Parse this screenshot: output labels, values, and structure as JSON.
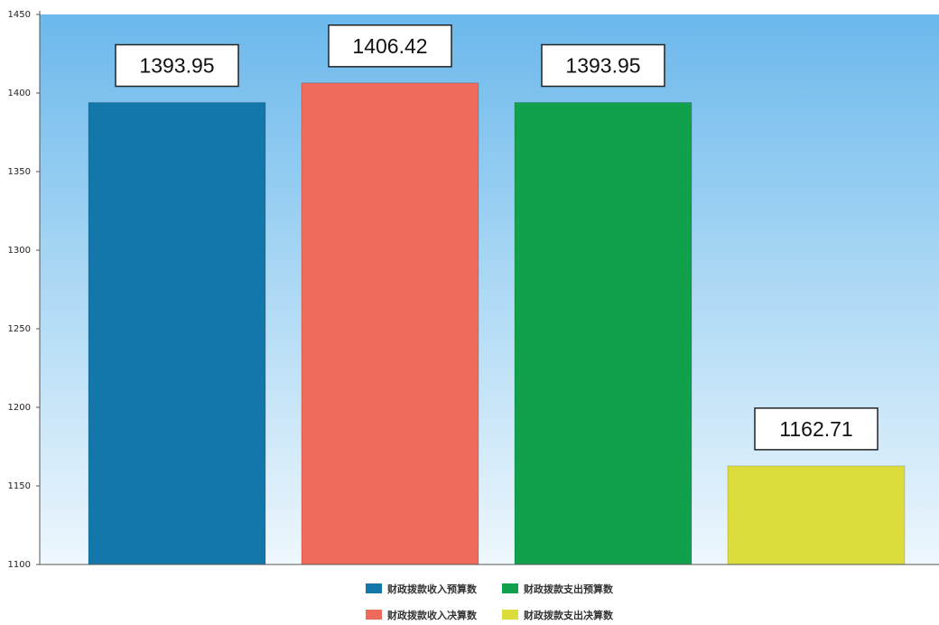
{
  "chart_data": {
    "type": "bar",
    "categories": [
      "财政拨款收入预算数",
      "财政拨款收入决算数",
      "财政拨款支出预算数",
      "财政拨款支出决算数"
    ],
    "values": [
      1393.95,
      1406.42,
      1393.95,
      1162.71
    ],
    "data_labels": [
      "1393.95",
      "1406.42",
      "1393.95",
      "1162.71"
    ],
    "colors": [
      "#1377aa",
      "#ee6a5a",
      "#11a04c",
      "#dcdc3c"
    ],
    "ylim": [
      1100,
      1450
    ],
    "yticks": [
      1100,
      1150,
      1200,
      1250,
      1300,
      1350,
      1400,
      1450
    ],
    "ytick_labels": [
      "1100",
      "1150",
      "1200",
      "1250",
      "1300",
      "1350",
      "1400",
      "1450"
    ],
    "title": "",
    "xlabel": "",
    "ylabel": "",
    "grid": false,
    "background": "light-blue-gradient",
    "legend": {
      "placement": "bottom",
      "entries": [
        "财政拨款收入预算数",
        "财政拨款支出预算数",
        "财政拨款收入决算数",
        "财政拨款支出决算数"
      ],
      "colors": [
        "#1377aa",
        "#11a04c",
        "#ee6a5a",
        "#dcdc3c"
      ]
    }
  }
}
